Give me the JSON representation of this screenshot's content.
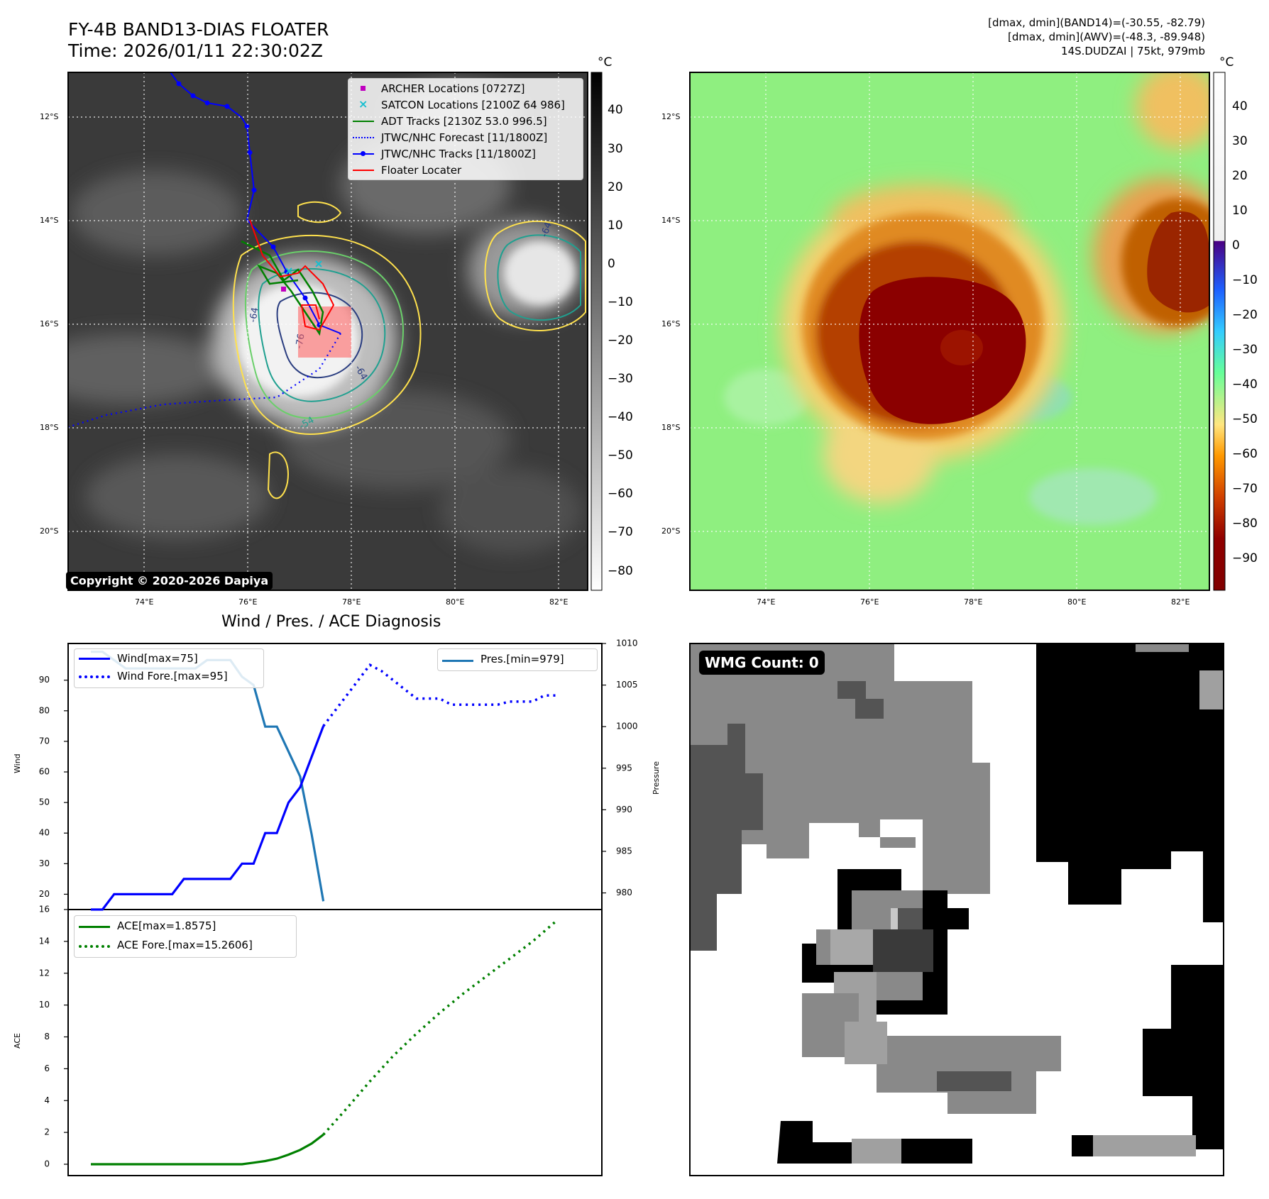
{
  "header": {
    "title_line1": "FY-4B BAND13-DIAS FLOATER",
    "title_line2": "Time: 2026/01/11 22:30:02Z",
    "right_line1": "[dmax, dmin](BAND14)=(-30.55, -82.79)",
    "right_line2": "[dmax, dmin](AWV)=(-48.3, -89.948)",
    "right_line3": "14S.DUDZAI | 75kt, 979mb"
  },
  "ir_map": {
    "lat_labels": [
      "12°S",
      "14°S",
      "16°S",
      "18°S",
      "20°S"
    ],
    "lon_labels": [
      "74°E",
      "76°E",
      "78°E",
      "80°E",
      "82°E"
    ],
    "colorbar_unit": "°C",
    "colorbar_ticks": [
      "40",
      "30",
      "20",
      "10",
      "0",
      "−10",
      "−20",
      "−30",
      "−40",
      "−50",
      "−60",
      "−70",
      "−80"
    ],
    "contour_labels": [
      "-64",
      "-76",
      "-64",
      "-54",
      "-64"
    ],
    "copyright": "Copyright © 2020-2026 Dapiya",
    "legend": [
      {
        "label": "ARCHER Locations [0727Z]",
        "color": "#c000c0",
        "symbol": "square"
      },
      {
        "label": "SATCON Locations [2100Z 64 986]",
        "color": "#17becf",
        "symbol": "x"
      },
      {
        "label": "ADT Tracks [2130Z 53.0 996.5]",
        "color": "#008000",
        "symbol": "line"
      },
      {
        "label": "JTWC/NHC Forecast [11/1800Z]",
        "color": "#0000ff",
        "symbol": "dotted"
      },
      {
        "label": "JTWC/NHC Tracks [11/1800Z]",
        "color": "#0000ff",
        "symbol": "line-dot"
      },
      {
        "label": "Floater Locater",
        "color": "#ff0000",
        "symbol": "line"
      }
    ]
  },
  "awv_map": {
    "lat_labels": [
      "12°S",
      "14°S",
      "16°S",
      "18°S",
      "20°S"
    ],
    "lon_labels": [
      "74°E",
      "76°E",
      "78°E",
      "80°E",
      "82°E"
    ],
    "colorbar_unit": "°C",
    "colorbar_ticks": [
      "40",
      "30",
      "20",
      "10",
      "0",
      "−10",
      "−20",
      "−30",
      "−40",
      "−50",
      "−60",
      "−70",
      "−80",
      "−90"
    ]
  },
  "diagnosis": {
    "title": "Wind / Pres. / ACE Diagnosis",
    "wind_ylabel": "Wind",
    "pres_ylabel": "Pressure",
    "ace_ylabel": "ACE",
    "wind_ticks": [
      "90",
      "80",
      "70",
      "60",
      "50",
      "40",
      "30",
      "20"
    ],
    "pres_ticks": [
      "1010",
      "1005",
      "1000",
      "995",
      "990",
      "985",
      "980"
    ],
    "ace_ticks": [
      "16",
      "14",
      "12",
      "10",
      "8",
      "6",
      "4",
      "2",
      "0"
    ],
    "legend_wind": [
      "Wind[max=75]",
      "Wind Fore.[max=95]"
    ],
    "legend_pres": [
      "Pres.[min=979]"
    ],
    "legend_ace": [
      "ACE[max=1.8575]",
      "ACE Fore.[max=15.2606]"
    ]
  },
  "wmg": {
    "label": "WMG Count: 0"
  },
  "chart_data": [
    {
      "type": "line",
      "title": "Wind / Pres. / ACE Diagnosis",
      "ylabel": "Wind",
      "ylim": [
        15,
        102
      ],
      "x": [
        0,
        1,
        2,
        3,
        4,
        5,
        6,
        7,
        8,
        9,
        10,
        11,
        12,
        13,
        14,
        15,
        16,
        17,
        18,
        19,
        20,
        21,
        22,
        23,
        24,
        25,
        26,
        27,
        28,
        29,
        30,
        31,
        32,
        33,
        34,
        35,
        36,
        37,
        38,
        39,
        40,
        41,
        42
      ],
      "series": [
        {
          "name": "Wind[max=75]",
          "color": "#0000ff",
          "style": "solid",
          "x": [
            0,
            1,
            2,
            3,
            4,
            5,
            6,
            7,
            8,
            9,
            10,
            11,
            12,
            13,
            14,
            15,
            16,
            17,
            18,
            19,
            20
          ],
          "values": [
            15,
            15,
            20,
            20,
            20,
            20,
            20,
            20,
            25,
            25,
            25,
            25,
            25,
            30,
            30,
            40,
            40,
            50,
            55,
            65,
            75
          ]
        },
        {
          "name": "Wind Fore.[max=95]",
          "color": "#0000ff",
          "style": "dotted",
          "x": [
            20,
            21,
            22,
            23,
            24,
            25,
            26,
            27,
            28,
            29,
            30,
            31,
            32,
            33,
            34,
            35,
            36,
            37,
            38,
            39,
            40
          ],
          "values": [
            75,
            80,
            85,
            90,
            95,
            93,
            90,
            87,
            84,
            84,
            84,
            82,
            82,
            82,
            82,
            82,
            83,
            83,
            83,
            85,
            85
          ]
        }
      ]
    },
    {
      "type": "line",
      "ylabel": "Pressure",
      "ylim": [
        978,
        1010
      ],
      "series": [
        {
          "name": "Pres.[min=979]",
          "color": "#1f77b4",
          "style": "solid",
          "x": [
            0,
            1,
            2,
            3,
            4,
            5,
            6,
            7,
            8,
            9,
            10,
            11,
            12,
            13,
            14,
            15,
            16,
            17,
            18,
            19,
            20
          ],
          "values": [
            1009,
            1009,
            1008,
            1007,
            1007,
            1007,
            1007,
            1007,
            1007,
            1007,
            1008,
            1008,
            1008,
            1006,
            1005,
            1000,
            1000,
            997,
            994,
            987,
            979
          ]
        }
      ]
    },
    {
      "type": "line",
      "ylabel": "ACE",
      "ylim": [
        0,
        16
      ],
      "series": [
        {
          "name": "ACE[max=1.8575]",
          "color": "#008000",
          "style": "solid",
          "x": [
            0,
            2,
            4,
            6,
            8,
            10,
            12,
            13,
            14,
            15,
            16,
            17,
            18,
            19,
            20
          ],
          "values": [
            0,
            0,
            0,
            0,
            0,
            0,
            0,
            0,
            0.1,
            0.2,
            0.35,
            0.6,
            0.9,
            1.3,
            1.86
          ]
        },
        {
          "name": "ACE Fore.[max=15.2606]",
          "color": "#008000",
          "style": "dotted",
          "x": [
            20,
            22,
            24,
            26,
            28,
            30,
            32,
            34,
            36,
            38,
            40
          ],
          "values": [
            1.86,
            3.5,
            5.2,
            6.8,
            8.2,
            9.5,
            10.7,
            11.8,
            12.9,
            14.0,
            15.26
          ]
        }
      ]
    }
  ]
}
